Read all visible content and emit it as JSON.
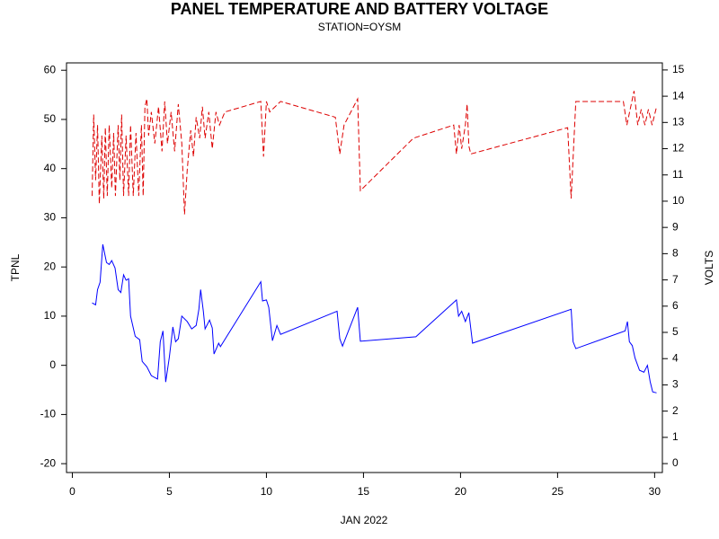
{
  "chart_data": {
    "type": "line",
    "title": "PANEL TEMPERATURE AND BATTERY VOLTAGE",
    "subtitle": "STATION=OYSM",
    "xlabel": "JAN 2022",
    "ylabel": "TPNL",
    "y2label": "VOLTS",
    "xlim": [
      -0.3,
      30.4
    ],
    "xticks": [
      0,
      5,
      10,
      15,
      20,
      25,
      30
    ],
    "ylim": [
      -21.8,
      61.5
    ],
    "yticks": [
      -20,
      -10,
      0,
      10,
      20,
      30,
      40,
      50,
      60
    ],
    "y2lim": [
      -0.34,
      15.27
    ],
    "y2ticks": [
      0,
      1,
      2,
      3,
      4,
      5,
      6,
      7,
      8,
      9,
      10,
      11,
      12,
      13,
      14,
      15
    ],
    "series": [
      {
        "color": "#0000ff",
        "dash": false,
        "axis": "y",
        "x": [
          1.02,
          1.2,
          1.3,
          1.43,
          1.57,
          1.76,
          1.9,
          2.03,
          2.2,
          2.36,
          2.5,
          2.64,
          2.77,
          2.9,
          3.0,
          3.24,
          3.47,
          3.6,
          3.84,
          4.07,
          4.39,
          4.53,
          4.67,
          4.81,
          5.0,
          5.18,
          5.32,
          5.46,
          5.64,
          5.92,
          6.15,
          6.38,
          6.52,
          6.61,
          6.75,
          6.84,
          7.07,
          7.21,
          7.3,
          7.54,
          7.63,
          9.71,
          9.8,
          10.0,
          10.12,
          10.31,
          10.54,
          10.73,
          13.64,
          13.78,
          13.92,
          14.7,
          14.84,
          17.7,
          19.79,
          19.9,
          20.06,
          20.25,
          20.43,
          20.62,
          25.7,
          25.8,
          25.94,
          28.48,
          28.6,
          28.7,
          28.85,
          28.99,
          29.22,
          29.45,
          29.63,
          29.77,
          29.9,
          30.1
        ],
        "values": [
          12.7,
          12.3,
          15.4,
          16.9,
          24.6,
          20.9,
          20.5,
          21.3,
          19.8,
          15.4,
          14.8,
          18.4,
          17.3,
          17.6,
          10.0,
          5.9,
          5.2,
          0.8,
          -0.3,
          -2.1,
          -2.8,
          4.8,
          7.0,
          -3.4,
          1.7,
          7.8,
          4.8,
          5.4,
          10.0,
          8.9,
          7.4,
          8.1,
          11.4,
          15.4,
          11.0,
          7.4,
          9.2,
          7.6,
          2.3,
          4.5,
          3.8,
          17.0,
          13.1,
          13.3,
          11.8,
          5.0,
          8.1,
          6.3,
          11.0,
          5.4,
          3.9,
          11.8,
          4.9,
          5.8,
          13.3,
          10.0,
          11.0,
          8.9,
          10.7,
          4.5,
          11.4,
          4.8,
          3.4,
          7.0,
          8.9,
          4.8,
          4.0,
          1.5,
          -1.0,
          -1.4,
          0.0,
          -3.3,
          -5.4,
          -5.6
        ]
      },
      {
        "color": "#dd0000",
        "dash": true,
        "axis": "y2",
        "x": [
          1.02,
          1.1,
          1.2,
          1.3,
          1.39,
          1.52,
          1.62,
          1.7,
          1.8,
          1.9,
          2.03,
          2.13,
          2.22,
          2.36,
          2.45,
          2.54,
          2.64,
          2.77,
          2.9,
          3.0,
          3.14,
          3.28,
          3.42,
          3.56,
          3.65,
          3.74,
          3.84,
          3.93,
          4.07,
          4.25,
          4.44,
          4.62,
          4.76,
          4.9,
          5.09,
          5.27,
          5.46,
          5.64,
          5.78,
          5.92,
          6.1,
          6.24,
          6.38,
          6.56,
          6.7,
          6.84,
          7.03,
          7.21,
          7.4,
          7.58,
          7.86,
          9.71,
          9.85,
          10.0,
          10.17,
          10.73,
          13.55,
          13.78,
          14.0,
          14.7,
          14.84,
          17.57,
          19.65,
          19.79,
          19.93,
          20.06,
          20.25,
          20.34,
          20.43,
          20.53,
          25.52,
          25.7,
          25.94,
          28.39,
          28.57,
          28.94,
          29.13,
          29.31,
          29.5,
          29.68,
          29.87,
          30.1
        ],
        "values": [
          10.2,
          13.3,
          10.8,
          12.9,
          9.9,
          12.5,
          10.1,
          12.8,
          10.2,
          12.9,
          10.5,
          12.6,
          10.2,
          12.9,
          10.8,
          13.3,
          10.2,
          12.5,
          10.2,
          12.9,
          10.2,
          12.6,
          10.2,
          12.9,
          10.2,
          13.6,
          13.9,
          12.5,
          13.4,
          12.2,
          13.6,
          11.9,
          13.8,
          12.2,
          13.4,
          11.9,
          13.7,
          12.2,
          9.5,
          11.2,
          12.7,
          11.7,
          13.2,
          12.4,
          13.6,
          12.4,
          13.4,
          12.0,
          13.4,
          12.9,
          13.4,
          13.8,
          11.7,
          13.8,
          13.4,
          13.8,
          13.2,
          11.8,
          12.9,
          13.9,
          10.4,
          12.4,
          12.9,
          11.8,
          12.9,
          12.0,
          12.9,
          13.7,
          12.1,
          11.8,
          12.8,
          10.1,
          13.8,
          13.8,
          12.9,
          14.2,
          12.9,
          13.5,
          12.9,
          13.5,
          12.9,
          13.6
        ]
      }
    ]
  }
}
